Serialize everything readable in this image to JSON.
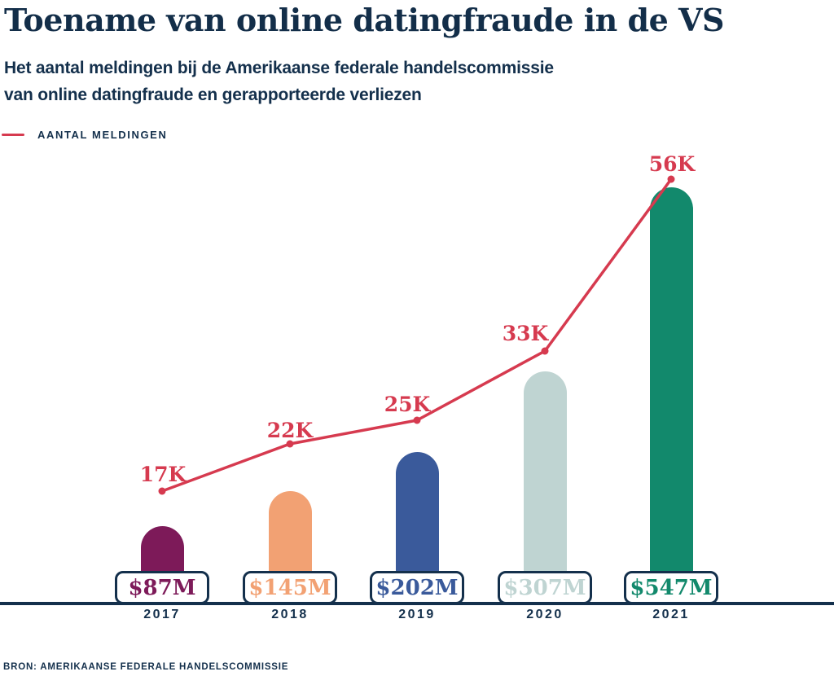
{
  "page": {
    "title": "Toename van online datingfraude in de VS",
    "subtitle_line1": "Het aantal meldingen bij de Amerikaanse federale handelscommissie",
    "subtitle_line2": "van online datingfraude en gerapporteerde verliezen",
    "source": "BRON: AMERIKAANSE FEDERALE HANDELSCOMMISSIE"
  },
  "legend": {
    "label": "AANTAL MELDINGEN",
    "color": "#d63a4f"
  },
  "colors": {
    "navy_text": "#14304c",
    "line_red": "#d63a4f",
    "box_background": "#ffffff"
  },
  "chart_data": {
    "type": "bar",
    "subtype": "bar-and-line combo",
    "title": "Toename van online datingfraude in de VS",
    "xlabel": "",
    "ylabel": "",
    "grid": false,
    "legend_position": "top-left",
    "categories": [
      "2017",
      "2018",
      "2019",
      "2020",
      "2021"
    ],
    "series": [
      {
        "name": "Aantal meldingen",
        "type": "line",
        "values": [
          17000,
          22000,
          25000,
          33000,
          56000
        ],
        "labels": [
          "17K",
          "22K",
          "25K",
          "33K",
          "56K"
        ],
        "color": "#d63a4f"
      },
      {
        "name": "Gerapporteerde verliezen (miljoen USD)",
        "type": "bar",
        "values": [
          87,
          145,
          202,
          307,
          547
        ],
        "labels": [
          "$87M",
          "$145M",
          "$202M",
          "$307M",
          "$547M"
        ],
        "colors": [
          "#7d1a59",
          "#f2a173",
          "#3a5a9b",
          "#bfd4d2",
          "#12896c"
        ]
      }
    ]
  }
}
